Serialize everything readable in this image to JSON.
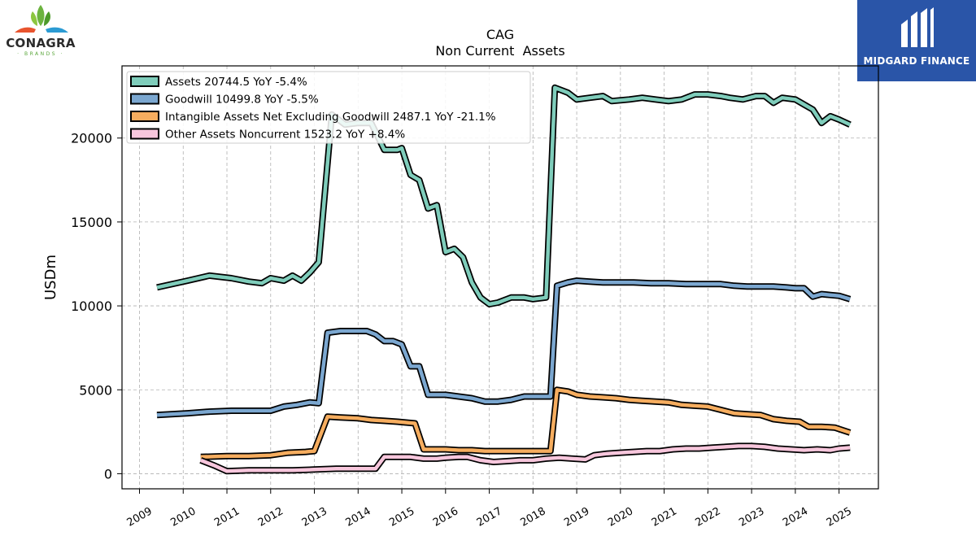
{
  "logos": {
    "left_name": "CONAGRA",
    "left_sub": "· BRANDS ·",
    "right_name": "MIDGARD FINANCE"
  },
  "colors": {
    "assets": "#7fcdbb",
    "goodwill": "#7ba7d0",
    "intangible": "#f6ad5f",
    "other": "#f7c6dc",
    "outline": "#000000",
    "grid": "#b0b0b0",
    "right_logo_bg": "#2a55a8"
  },
  "chart_data": {
    "type": "line",
    "title": "CAG",
    "subtitle": "Non Current  Assets",
    "xlabel": "",
    "ylabel": "USDm",
    "xlim": [
      2008.6,
      2025.9
    ],
    "ylim": [
      -900,
      24300
    ],
    "yticks": [
      0,
      5000,
      10000,
      15000,
      20000
    ],
    "xticks": [
      "2009",
      "2010",
      "2011",
      "2012",
      "2013",
      "2014",
      "2015",
      "2016",
      "2017",
      "2018",
      "2019",
      "2020",
      "2021",
      "2022",
      "2023",
      "2024",
      "2025"
    ],
    "grid": true,
    "legend_position": "top-left",
    "series": [
      {
        "name": "Assets  20744.5 YoY -5.4%",
        "color_key": "assets",
        "points": [
          [
            2009.4,
            11100
          ],
          [
            2010.1,
            11500
          ],
          [
            2010.6,
            11800
          ],
          [
            2011.1,
            11650
          ],
          [
            2011.5,
            11450
          ],
          [
            2011.8,
            11350
          ],
          [
            2012.0,
            11650
          ],
          [
            2012.3,
            11500
          ],
          [
            2012.5,
            11800
          ],
          [
            2012.7,
            11500
          ],
          [
            2012.9,
            12000
          ],
          [
            2013.1,
            12600
          ],
          [
            2013.4,
            21400
          ],
          [
            2013.7,
            20800
          ],
          [
            2014.0,
            20900
          ],
          [
            2014.3,
            20900
          ],
          [
            2014.6,
            19300
          ],
          [
            2014.9,
            19300
          ],
          [
            2015.0,
            19400
          ],
          [
            2015.2,
            17800
          ],
          [
            2015.4,
            17500
          ],
          [
            2015.6,
            15800
          ],
          [
            2015.8,
            16000
          ],
          [
            2016.0,
            13200
          ],
          [
            2016.2,
            13400
          ],
          [
            2016.4,
            12900
          ],
          [
            2016.6,
            11400
          ],
          [
            2016.8,
            10500
          ],
          [
            2017.0,
            10100
          ],
          [
            2017.2,
            10200
          ],
          [
            2017.5,
            10500
          ],
          [
            2017.8,
            10500
          ],
          [
            2018.0,
            10400
          ],
          [
            2018.3,
            10500
          ],
          [
            2018.5,
            23000
          ],
          [
            2018.8,
            22700
          ],
          [
            2019.0,
            22300
          ],
          [
            2019.3,
            22400
          ],
          [
            2019.6,
            22500
          ],
          [
            2019.8,
            22200
          ],
          [
            2020.2,
            22300
          ],
          [
            2020.5,
            22400
          ],
          [
            2020.8,
            22300
          ],
          [
            2021.1,
            22200
          ],
          [
            2021.4,
            22300
          ],
          [
            2021.7,
            22600
          ],
          [
            2022.0,
            22600
          ],
          [
            2022.3,
            22500
          ],
          [
            2022.5,
            22400
          ],
          [
            2022.8,
            22300
          ],
          [
            2023.1,
            22500
          ],
          [
            2023.3,
            22500
          ],
          [
            2023.5,
            22100
          ],
          [
            2023.7,
            22400
          ],
          [
            2024.0,
            22300
          ],
          [
            2024.2,
            22000
          ],
          [
            2024.4,
            21700
          ],
          [
            2024.6,
            20900
          ],
          [
            2024.8,
            21300
          ],
          [
            2025.0,
            21100
          ],
          [
            2025.25,
            20800
          ]
        ]
      },
      {
        "name": "Goodwill  10499.8 YoY -5.5%",
        "color_key": "goodwill",
        "points": [
          [
            2009.4,
            3500
          ],
          [
            2010.1,
            3600
          ],
          [
            2010.6,
            3700
          ],
          [
            2011.1,
            3750
          ],
          [
            2011.5,
            3750
          ],
          [
            2012.0,
            3750
          ],
          [
            2012.3,
            4000
          ],
          [
            2012.6,
            4100
          ],
          [
            2012.9,
            4250
          ],
          [
            2013.1,
            4200
          ],
          [
            2013.3,
            8400
          ],
          [
            2013.6,
            8500
          ],
          [
            2013.9,
            8500
          ],
          [
            2014.2,
            8500
          ],
          [
            2014.4,
            8300
          ],
          [
            2014.6,
            7900
          ],
          [
            2014.8,
            7900
          ],
          [
            2015.0,
            7700
          ],
          [
            2015.2,
            6400
          ],
          [
            2015.4,
            6400
          ],
          [
            2015.6,
            4700
          ],
          [
            2015.8,
            4700
          ],
          [
            2016.0,
            4700
          ],
          [
            2016.3,
            4600
          ],
          [
            2016.6,
            4500
          ],
          [
            2016.9,
            4300
          ],
          [
            2017.2,
            4300
          ],
          [
            2017.5,
            4400
          ],
          [
            2017.8,
            4600
          ],
          [
            2018.1,
            4600
          ],
          [
            2018.4,
            4600
          ],
          [
            2018.55,
            11200
          ],
          [
            2018.8,
            11400
          ],
          [
            2019.0,
            11500
          ],
          [
            2019.3,
            11450
          ],
          [
            2019.6,
            11400
          ],
          [
            2019.9,
            11400
          ],
          [
            2020.3,
            11400
          ],
          [
            2020.7,
            11350
          ],
          [
            2021.1,
            11350
          ],
          [
            2021.5,
            11300
          ],
          [
            2021.9,
            11300
          ],
          [
            2022.3,
            11300
          ],
          [
            2022.6,
            11200
          ],
          [
            2022.9,
            11150
          ],
          [
            2023.2,
            11150
          ],
          [
            2023.5,
            11150
          ],
          [
            2023.8,
            11100
          ],
          [
            2024.0,
            11050
          ],
          [
            2024.2,
            11050
          ],
          [
            2024.4,
            10550
          ],
          [
            2024.6,
            10700
          ],
          [
            2024.8,
            10650
          ],
          [
            2025.0,
            10600
          ],
          [
            2025.25,
            10400
          ]
        ]
      },
      {
        "name": "Intangible Assets Net Excluding Goodwill  2487.1 YoY -21.1%",
        "color_key": "intangible",
        "points": [
          [
            2010.4,
            1000
          ],
          [
            2011.0,
            1050
          ],
          [
            2011.5,
            1050
          ],
          [
            2012.0,
            1100
          ],
          [
            2012.4,
            1250
          ],
          [
            2012.8,
            1300
          ],
          [
            2013.0,
            1350
          ],
          [
            2013.3,
            3400
          ],
          [
            2013.6,
            3350
          ],
          [
            2014.0,
            3300
          ],
          [
            2014.3,
            3200
          ],
          [
            2014.6,
            3150
          ],
          [
            2014.9,
            3100
          ],
          [
            2015.1,
            3050
          ],
          [
            2015.3,
            3000
          ],
          [
            2015.5,
            1450
          ],
          [
            2015.8,
            1450
          ],
          [
            2016.0,
            1450
          ],
          [
            2016.3,
            1400
          ],
          [
            2016.6,
            1400
          ],
          [
            2016.9,
            1350
          ],
          [
            2017.2,
            1350
          ],
          [
            2017.5,
            1350
          ],
          [
            2017.8,
            1350
          ],
          [
            2018.1,
            1350
          ],
          [
            2018.4,
            1350
          ],
          [
            2018.55,
            5000
          ],
          [
            2018.8,
            4900
          ],
          [
            2019.0,
            4700
          ],
          [
            2019.3,
            4600
          ],
          [
            2019.6,
            4550
          ],
          [
            2019.9,
            4500
          ],
          [
            2020.2,
            4400
          ],
          [
            2020.5,
            4350
          ],
          [
            2020.8,
            4300
          ],
          [
            2021.1,
            4250
          ],
          [
            2021.4,
            4100
          ],
          [
            2021.7,
            4050
          ],
          [
            2022.0,
            4000
          ],
          [
            2022.3,
            3800
          ],
          [
            2022.6,
            3600
          ],
          [
            2022.9,
            3550
          ],
          [
            2023.2,
            3500
          ],
          [
            2023.5,
            3250
          ],
          [
            2023.8,
            3150
          ],
          [
            2024.1,
            3100
          ],
          [
            2024.3,
            2800
          ],
          [
            2024.6,
            2800
          ],
          [
            2024.9,
            2750
          ],
          [
            2025.25,
            2450
          ]
        ]
      },
      {
        "name": "Other Assets Noncurrent  1523.2 YoY +8.4%",
        "color_key": "other",
        "points": [
          [
            2010.4,
            800
          ],
          [
            2010.7,
            500
          ],
          [
            2011.0,
            150
          ],
          [
            2011.5,
            200
          ],
          [
            2012.0,
            200
          ],
          [
            2012.5,
            200
          ],
          [
            2013.0,
            250
          ],
          [
            2013.5,
            300
          ],
          [
            2014.0,
            300
          ],
          [
            2014.4,
            300
          ],
          [
            2014.6,
            1000
          ],
          [
            2014.9,
            1000
          ],
          [
            2015.2,
            1000
          ],
          [
            2015.5,
            900
          ],
          [
            2015.8,
            900
          ],
          [
            2016.0,
            950
          ],
          [
            2016.3,
            1000
          ],
          [
            2016.5,
            1000
          ],
          [
            2016.8,
            800
          ],
          [
            2017.1,
            700
          ],
          [
            2017.4,
            750
          ],
          [
            2017.7,
            800
          ],
          [
            2018.0,
            800
          ],
          [
            2018.3,
            900
          ],
          [
            2018.6,
            950
          ],
          [
            2018.9,
            900
          ],
          [
            2019.2,
            850
          ],
          [
            2019.4,
            1100
          ],
          [
            2019.7,
            1200
          ],
          [
            2020.0,
            1250
          ],
          [
            2020.3,
            1300
          ],
          [
            2020.6,
            1350
          ],
          [
            2020.9,
            1350
          ],
          [
            2021.2,
            1450
          ],
          [
            2021.5,
            1500
          ],
          [
            2021.8,
            1500
          ],
          [
            2022.1,
            1550
          ],
          [
            2022.4,
            1600
          ],
          [
            2022.7,
            1650
          ],
          [
            2023.0,
            1650
          ],
          [
            2023.3,
            1600
          ],
          [
            2023.6,
            1500
          ],
          [
            2023.9,
            1450
          ],
          [
            2024.2,
            1400
          ],
          [
            2024.5,
            1450
          ],
          [
            2024.8,
            1400
          ],
          [
            2025.0,
            1500
          ],
          [
            2025.25,
            1550
          ]
        ]
      }
    ]
  }
}
